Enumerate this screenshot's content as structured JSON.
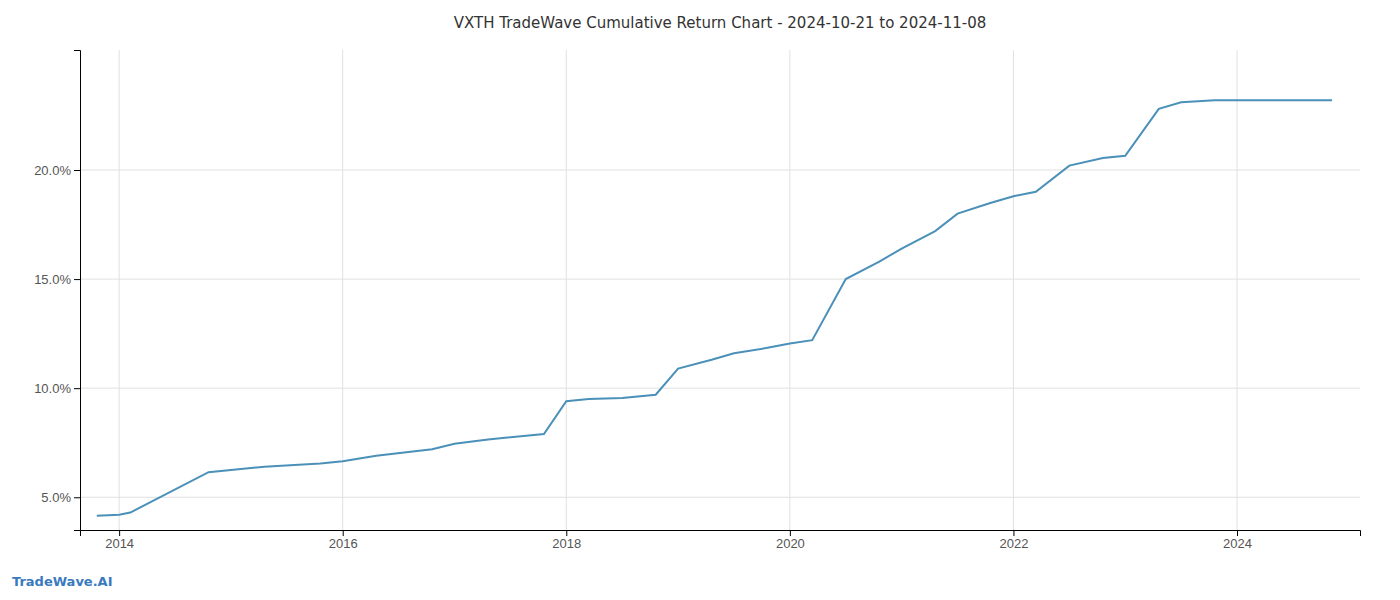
{
  "chart_data": {
    "type": "line",
    "title": "VXTH TradeWave Cumulative Return Chart - 2024-10-21 to 2024-11-08",
    "annotations": [
      "TradeWave.AI"
    ],
    "x": [
      2013.8,
      2014.0,
      2014.1,
      2014.8,
      2015.0,
      2015.3,
      2015.8,
      2016.0,
      2016.3,
      2016.8,
      2017.0,
      2017.3,
      2017.8,
      2018.0,
      2018.2,
      2018.5,
      2018.8,
      2019.0,
      2019.3,
      2019.5,
      2019.8,
      2020.0,
      2020.2,
      2020.5,
      2020.8,
      2021.0,
      2021.3,
      2021.5,
      2021.8,
      2022.0,
      2022.2,
      2022.5,
      2022.8,
      2023.0,
      2023.3,
      2023.5,
      2023.8,
      2024.0,
      2024.5,
      2024.85
    ],
    "values": [
      4.15,
      4.2,
      4.3,
      6.15,
      6.25,
      6.4,
      6.55,
      6.65,
      6.9,
      7.2,
      7.45,
      7.65,
      7.9,
      9.4,
      9.5,
      9.55,
      9.7,
      10.9,
      11.3,
      11.6,
      11.85,
      12.05,
      12.2,
      15.0,
      15.8,
      16.4,
      17.2,
      18.0,
      18.5,
      18.8,
      19.0,
      20.2,
      20.55,
      20.65,
      22.8,
      23.1,
      23.2,
      23.2,
      23.2,
      23.2
    ],
    "color": "#4a90b8",
    "xlim": [
      2013.65,
      2025.1
    ],
    "ylim": [
      3.5,
      25.5
    ],
    "xticks": [
      2014,
      2016,
      2018,
      2020,
      2022,
      2024
    ],
    "yticks": [
      {
        "value": 5.0,
        "label": "5.0%"
      },
      {
        "value": 10.0,
        "label": "10.0%"
      },
      {
        "value": 15.0,
        "label": "15.0%"
      },
      {
        "value": 20.0,
        "label": "20.0%"
      }
    ],
    "grid": true
  }
}
